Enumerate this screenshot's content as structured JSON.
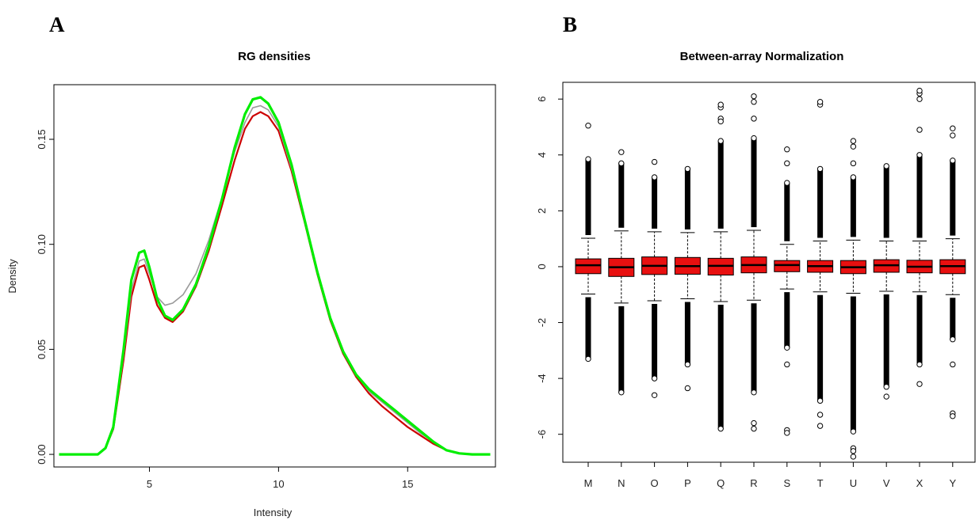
{
  "panels": {
    "a_letter": "A",
    "b_letter": "B"
  },
  "chart_data": [
    {
      "type": "line",
      "title": "RG densities",
      "xlabel": "Intensity",
      "ylabel": "Density",
      "xlim": [
        1.3,
        18.4
      ],
      "ylim": [
        -0.006,
        0.176
      ],
      "x_ticks": [
        5,
        10,
        15
      ],
      "y_ticks": [
        0.0,
        0.05,
        0.1,
        0.15
      ],
      "y_tick_labels": [
        "0.00",
        "0.05",
        "0.10",
        "0.15"
      ],
      "grid": false,
      "colors": {
        "red_arrays": "#cc0000",
        "green_arrays": "#00ee00",
        "gray_arrays": "#9a9a9a"
      },
      "series": [
        {
          "color": "red",
          "x": [
            1.5,
            3.0,
            3.3,
            3.6,
            4.0,
            4.3,
            4.6,
            4.8,
            5.0,
            5.3,
            5.6,
            5.9,
            6.3,
            6.8,
            7.3,
            7.8,
            8.3,
            8.7,
            9.0,
            9.3,
            9.6,
            10.0,
            10.5,
            11.0,
            11.5,
            12.0,
            12.5,
            13.0,
            13.5,
            14.0,
            14.5,
            15.0,
            15.5,
            16.0,
            16.5,
            17.0,
            17.5,
            18.2
          ],
          "y": [
            0.0,
            0.0,
            0.003,
            0.012,
            0.045,
            0.075,
            0.089,
            0.09,
            0.083,
            0.071,
            0.065,
            0.063,
            0.068,
            0.08,
            0.097,
            0.118,
            0.14,
            0.155,
            0.161,
            0.163,
            0.161,
            0.154,
            0.135,
            0.111,
            0.086,
            0.064,
            0.048,
            0.037,
            0.029,
            0.023,
            0.018,
            0.013,
            0.009,
            0.005,
            0.002,
            0.0005,
            0.0,
            0.0
          ]
        },
        {
          "color": "green",
          "x": [
            1.5,
            3.0,
            3.3,
            3.6,
            4.0,
            4.3,
            4.6,
            4.8,
            5.0,
            5.3,
            5.6,
            5.9,
            6.3,
            6.8,
            7.3,
            7.8,
            8.3,
            8.7,
            9.0,
            9.3,
            9.6,
            10.0,
            10.5,
            11.0,
            11.5,
            12.0,
            12.5,
            13.0,
            13.5,
            14.0,
            14.5,
            15.0,
            15.5,
            16.0,
            16.5,
            17.0,
            17.5,
            18.2
          ],
          "y": [
            0.0,
            0.0,
            0.003,
            0.013,
            0.05,
            0.083,
            0.096,
            0.097,
            0.089,
            0.074,
            0.066,
            0.064,
            0.069,
            0.081,
            0.099,
            0.121,
            0.146,
            0.162,
            0.169,
            0.17,
            0.167,
            0.158,
            0.138,
            0.112,
            0.087,
            0.065,
            0.049,
            0.038,
            0.031,
            0.026,
            0.021,
            0.016,
            0.011,
            0.006,
            0.002,
            0.0005,
            0.0,
            0.0
          ]
        },
        {
          "color": "gray",
          "x": [
            1.5,
            3.0,
            3.3,
            3.6,
            4.0,
            4.3,
            4.6,
            4.8,
            5.0,
            5.3,
            5.6,
            5.9,
            6.3,
            6.8,
            7.3,
            7.8,
            8.3,
            8.7,
            9.0,
            9.3,
            9.6,
            10.0,
            10.5,
            11.0,
            11.5,
            12.0,
            12.5,
            13.0,
            13.5,
            14.0,
            14.5,
            15.0,
            15.5,
            16.0,
            16.5,
            17.0,
            17.5,
            18.2
          ],
          "y": [
            0.0,
            0.0,
            0.003,
            0.012,
            0.047,
            0.078,
            0.092,
            0.093,
            0.086,
            0.075,
            0.071,
            0.072,
            0.076,
            0.086,
            0.102,
            0.122,
            0.144,
            0.158,
            0.165,
            0.166,
            0.164,
            0.156,
            0.136,
            0.112,
            0.087,
            0.065,
            0.049,
            0.038,
            0.03,
            0.025,
            0.02,
            0.015,
            0.01,
            0.006,
            0.002,
            0.0005,
            0.0,
            0.0
          ]
        }
      ]
    },
    {
      "type": "box",
      "title": "Between-array Normalization",
      "xlabel": "",
      "ylabel": "",
      "ylim": [
        -7.0,
        6.6
      ],
      "y_ticks": [
        -6,
        -4,
        -2,
        0,
        2,
        4,
        6
      ],
      "y_tick_labels": [
        "-6",
        "-4",
        "-2",
        "0",
        "2",
        "4",
        "6"
      ],
      "grid": false,
      "box_color": "#e81010",
      "categories": [
        "M",
        "N",
        "O",
        "P",
        "Q",
        "R",
        "S",
        "T",
        "U",
        "V",
        "X",
        "Y"
      ],
      "boxes": [
        {
          "q1": -0.25,
          "median": 0.05,
          "q3": 0.28,
          "whisker_low": -0.98,
          "whisker_high": 1.02,
          "outlier_low": -3.3,
          "outlier_high": 3.85,
          "extreme_outliers": [
            5.05
          ]
        },
        {
          "q1": -0.35,
          "median": -0.02,
          "q3": 0.3,
          "whisker_low": -1.3,
          "whisker_high": 1.28,
          "outlier_low": -4.5,
          "outlier_high": 3.7,
          "extreme_outliers": [
            4.1
          ]
        },
        {
          "q1": -0.28,
          "median": 0.03,
          "q3": 0.35,
          "whisker_low": -1.22,
          "whisker_high": 1.25,
          "outlier_low": -4.0,
          "outlier_high": 3.2,
          "extreme_outliers": [
            3.75,
            -4.6
          ]
        },
        {
          "q1": -0.27,
          "median": 0.02,
          "q3": 0.33,
          "whisker_low": -1.15,
          "whisker_high": 1.22,
          "outlier_low": -3.5,
          "outlier_high": 3.5,
          "extreme_outliers": [
            -4.35
          ]
        },
        {
          "q1": -0.3,
          "median": 0.03,
          "q3": 0.3,
          "whisker_low": -1.25,
          "whisker_high": 1.25,
          "outlier_low": -5.8,
          "outlier_high": 4.5,
          "extreme_outliers": [
            5.7,
            5.8,
            5.3,
            5.2
          ]
        },
        {
          "q1": -0.22,
          "median": 0.06,
          "q3": 0.35,
          "whisker_low": -1.2,
          "whisker_high": 1.3,
          "outlier_low": -4.5,
          "outlier_high": 4.6,
          "extreme_outliers": [
            5.9,
            6.1,
            5.3,
            -5.6,
            -5.8
          ]
        },
        {
          "q1": -0.18,
          "median": 0.06,
          "q3": 0.22,
          "whisker_low": -0.8,
          "whisker_high": 0.8,
          "outlier_low": -2.9,
          "outlier_high": 3.0,
          "extreme_outliers": [
            4.2,
            3.7,
            -3.5,
            -5.85,
            -5.95
          ]
        },
        {
          "q1": -0.2,
          "median": 0.02,
          "q3": 0.22,
          "whisker_low": -0.9,
          "whisker_high": 0.92,
          "outlier_low": -4.8,
          "outlier_high": 3.5,
          "extreme_outliers": [
            5.8,
            5.9,
            -5.3,
            -5.7
          ]
        },
        {
          "q1": -0.25,
          "median": -0.02,
          "q3": 0.22,
          "whisker_low": -0.95,
          "whisker_high": 0.95,
          "outlier_low": -5.9,
          "outlier_high": 3.2,
          "extreme_outliers": [
            4.5,
            4.3,
            3.7,
            -6.5,
            -6.8,
            -6.6
          ]
        },
        {
          "q1": -0.2,
          "median": 0.05,
          "q3": 0.25,
          "whisker_low": -0.88,
          "whisker_high": 0.92,
          "outlier_low": -4.3,
          "outlier_high": 3.6,
          "extreme_outliers": [
            -4.65
          ]
        },
        {
          "q1": -0.22,
          "median": 0.0,
          "q3": 0.23,
          "whisker_low": -0.9,
          "whisker_high": 0.92,
          "outlier_low": -3.5,
          "outlier_high": 4.0,
          "extreme_outliers": [
            6.2,
            6.3,
            6.0,
            4.9,
            -4.2
          ]
        },
        {
          "q1": -0.25,
          "median": 0.02,
          "q3": 0.25,
          "whisker_low": -1.0,
          "whisker_high": 1.0,
          "outlier_low": -2.6,
          "outlier_high": 3.8,
          "extreme_outliers": [
            4.95,
            4.7,
            -3.5,
            -5.25,
            -5.35
          ]
        }
      ]
    }
  ]
}
